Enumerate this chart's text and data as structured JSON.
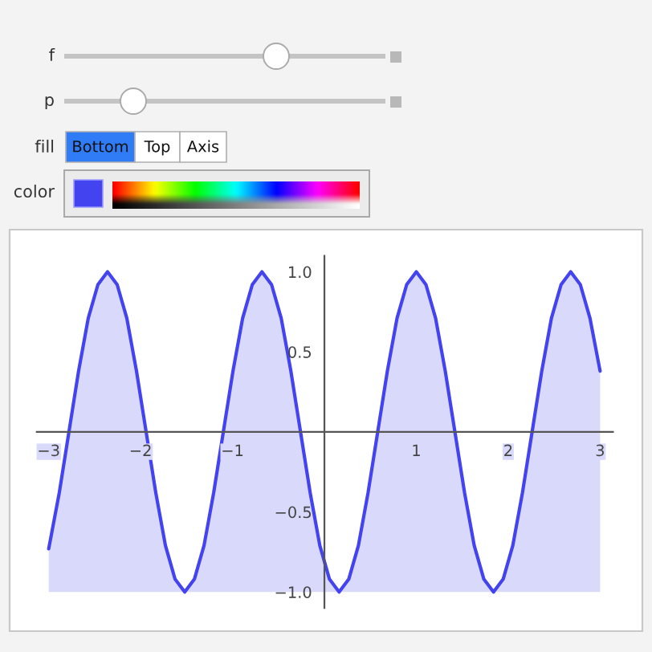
{
  "chart_data": [
    {
      "type": "other",
      "annotations": [
        "f",
        "p",
        "fill",
        "Bottom",
        "Top",
        "Axis",
        "color"
      ]
    },
    {
      "type": "line",
      "xlim": [
        -3.13,
        3.14
      ],
      "ylim": [
        -1.1,
        1.1
      ],
      "xticks": [
        {
          "value": -3,
          "label": "−3"
        },
        {
          "value": -2,
          "label": "−2"
        },
        {
          "value": -1,
          "label": "−1"
        },
        {
          "value": 1,
          "label": "1"
        },
        {
          "value": 2,
          "label": "2"
        },
        {
          "value": 3,
          "label": "3"
        }
      ],
      "yticks": [
        {
          "value": -1.0,
          "label": "−1.0"
        },
        {
          "value": -0.5,
          "label": "−0.5"
        },
        {
          "value": 0.5,
          "label": "0.5"
        },
        {
          "value": 1.0,
          "label": "1.0"
        }
      ],
      "grid": false,
      "legend": false,
      "series": [
        {
          "color": "#4343f0",
          "x": [
            -3.0,
            -2.885,
            -2.78,
            -2.675,
            -2.57,
            -2.465,
            -2.36,
            -2.255,
            -2.15,
            -2.045,
            -1.94,
            -1.835,
            -1.73,
            -1.625,
            -1.52,
            -1.415,
            -1.31,
            -1.205,
            -1.1,
            -0.995,
            -0.89,
            -0.785,
            -0.68,
            -0.575,
            -0.47,
            -0.365,
            -0.26,
            -0.155,
            -0.05,
            0.055,
            0.16,
            0.265,
            0.37,
            0.475,
            0.58,
            0.685,
            0.79,
            0.895,
            1.0,
            1.105,
            1.21,
            1.315,
            1.42,
            1.525,
            1.63,
            1.735,
            1.84,
            1.945,
            2.05,
            2.155,
            2.26,
            2.365,
            2.47,
            2.575,
            2.68,
            2.785,
            2.89,
            3.0
          ],
          "values": [
            -0.73,
            -0.38,
            0,
            0.38,
            0.71,
            0.92,
            1,
            0.92,
            0.71,
            0.38,
            0,
            -0.38,
            -0.71,
            -0.92,
            -1,
            -0.92,
            -0.71,
            -0.38,
            0,
            0.38,
            0.71,
            0.92,
            1,
            0.92,
            0.71,
            0.38,
            0,
            -0.38,
            -0.71,
            -0.92,
            -1,
            -0.92,
            -0.71,
            -0.38,
            0,
            0.38,
            0.71,
            0.92,
            1,
            0.92,
            0.71,
            0.38,
            0,
            -0.38,
            -0.71,
            -0.92,
            -1,
            -0.92,
            -0.71,
            -0.38,
            0,
            0.38,
            0.71,
            0.92,
            1,
            0.92,
            0.71,
            0.38
          ],
          "lower": [
            -1,
            -1,
            -1,
            -1,
            -1,
            -1,
            -1,
            -1,
            -1,
            -1,
            -1,
            -1,
            -1,
            -1,
            -1,
            -1,
            -1,
            -1,
            -1,
            -1,
            -1,
            -1,
            -1,
            -1,
            -1,
            -1,
            -1,
            -1,
            -1,
            -1,
            -1,
            -1,
            -1,
            -1,
            -1,
            -1,
            -1,
            -1,
            -1,
            -1,
            -1,
            -1,
            -1,
            -1,
            -1,
            -1,
            -1,
            -1,
            -1,
            -1,
            -1,
            -1,
            -1,
            -1,
            -1,
            -1,
            -1,
            -1
          ],
          "upper": [
            -0.73,
            -0.38,
            0,
            0.38,
            0.71,
            0.92,
            1,
            0.92,
            0.71,
            0.38,
            0,
            -0.38,
            -0.71,
            -0.92,
            -1,
            -0.92,
            -0.71,
            -0.38,
            0,
            0.38,
            0.71,
            0.92,
            1,
            0.92,
            0.71,
            0.38,
            0,
            -0.38,
            -0.71,
            -0.92,
            -1,
            -0.92,
            -0.71,
            -0.38,
            0,
            0.38,
            0.71,
            0.92,
            1,
            0.92,
            0.71,
            0.38,
            0,
            -0.38,
            -0.71,
            -0.92,
            -1,
            -0.92,
            -0.71,
            -0.38,
            0,
            0.38,
            0.71,
            0.92,
            1,
            0.92,
            0.71,
            0.38
          ]
        }
      ]
    }
  ]
}
